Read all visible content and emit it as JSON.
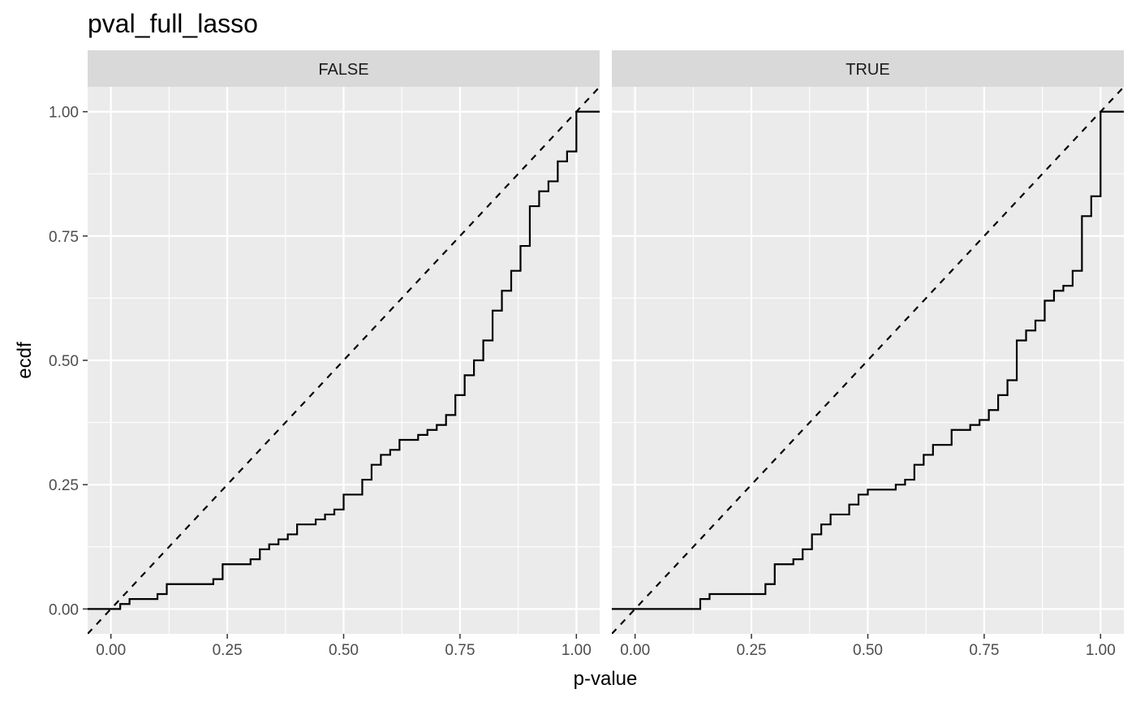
{
  "chart_data": {
    "type": "line",
    "title": "pval_full_lasso",
    "xlabel": "p-value",
    "ylabel": "ecdf",
    "xlim": [
      -0.05,
      1.05
    ],
    "ylim": [
      -0.05,
      1.05
    ],
    "x_ticks": [
      0,
      0.25,
      0.5,
      0.75,
      1.0
    ],
    "x_tick_labels": [
      "0.00",
      "0.25",
      "0.50",
      "0.75",
      "1.00"
    ],
    "y_ticks": [
      0,
      0.25,
      0.5,
      0.75,
      1.0
    ],
    "y_tick_labels": [
      "0.00",
      "0.25",
      "0.50",
      "0.75",
      "1.00"
    ],
    "grid": true,
    "reference_line": "y = x (dashed)",
    "colors": {
      "panel_background": "#ebebeb",
      "strip_background": "#d9d9d9",
      "grid": "#ffffff",
      "line": "#000000"
    },
    "panels": [
      {
        "label": "FALSE",
        "steps": [
          [
            0.0,
            0.0
          ],
          [
            0.02,
            0.01
          ],
          [
            0.04,
            0.02
          ],
          [
            0.1,
            0.03
          ],
          [
            0.12,
            0.05
          ],
          [
            0.22,
            0.06
          ],
          [
            0.24,
            0.09
          ],
          [
            0.3,
            0.1
          ],
          [
            0.32,
            0.12
          ],
          [
            0.34,
            0.13
          ],
          [
            0.36,
            0.14
          ],
          [
            0.38,
            0.15
          ],
          [
            0.4,
            0.17
          ],
          [
            0.44,
            0.18
          ],
          [
            0.46,
            0.19
          ],
          [
            0.48,
            0.2
          ],
          [
            0.5,
            0.23
          ],
          [
            0.54,
            0.26
          ],
          [
            0.56,
            0.29
          ],
          [
            0.58,
            0.31
          ],
          [
            0.6,
            0.32
          ],
          [
            0.62,
            0.34
          ],
          [
            0.66,
            0.35
          ],
          [
            0.68,
            0.36
          ],
          [
            0.7,
            0.37
          ],
          [
            0.72,
            0.39
          ],
          [
            0.74,
            0.43
          ],
          [
            0.76,
            0.47
          ],
          [
            0.78,
            0.5
          ],
          [
            0.8,
            0.54
          ],
          [
            0.82,
            0.6
          ],
          [
            0.84,
            0.64
          ],
          [
            0.86,
            0.68
          ],
          [
            0.88,
            0.73
          ],
          [
            0.9,
            0.81
          ],
          [
            0.92,
            0.84
          ],
          [
            0.94,
            0.86
          ],
          [
            0.96,
            0.9
          ],
          [
            0.98,
            0.92
          ],
          [
            1.0,
            1.0
          ]
        ]
      },
      {
        "label": "TRUE",
        "steps": [
          [
            0.0,
            0.0
          ],
          [
            0.14,
            0.02
          ],
          [
            0.16,
            0.03
          ],
          [
            0.28,
            0.05
          ],
          [
            0.3,
            0.09
          ],
          [
            0.34,
            0.1
          ],
          [
            0.36,
            0.12
          ],
          [
            0.38,
            0.15
          ],
          [
            0.4,
            0.17
          ],
          [
            0.42,
            0.19
          ],
          [
            0.46,
            0.21
          ],
          [
            0.48,
            0.23
          ],
          [
            0.5,
            0.24
          ],
          [
            0.56,
            0.25
          ],
          [
            0.58,
            0.26
          ],
          [
            0.6,
            0.29
          ],
          [
            0.62,
            0.31
          ],
          [
            0.64,
            0.33
          ],
          [
            0.68,
            0.36
          ],
          [
            0.72,
            0.37
          ],
          [
            0.74,
            0.38
          ],
          [
            0.76,
            0.4
          ],
          [
            0.78,
            0.43
          ],
          [
            0.8,
            0.46
          ],
          [
            0.82,
            0.54
          ],
          [
            0.84,
            0.56
          ],
          [
            0.86,
            0.58
          ],
          [
            0.88,
            0.62
          ],
          [
            0.9,
            0.64
          ],
          [
            0.92,
            0.65
          ],
          [
            0.94,
            0.68
          ],
          [
            0.96,
            0.79
          ],
          [
            0.98,
            0.83
          ],
          [
            1.0,
            1.0
          ]
        ]
      }
    ]
  }
}
